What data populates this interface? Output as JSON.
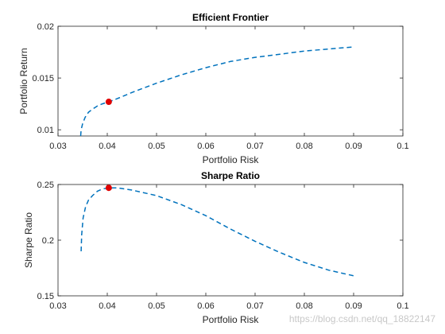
{
  "chart_data": [
    {
      "type": "line",
      "title": "Efficient Frontier",
      "xlabel": "Portfolio Risk",
      "ylabel": "Portfolio Return",
      "xlim": [
        0.03,
        0.1
      ],
      "ylim": [
        0.0094,
        0.02
      ],
      "xticks": [
        0.03,
        0.04,
        0.05,
        0.06,
        0.07,
        0.08,
        0.09,
        0.1
      ],
      "yticks": [
        0.01,
        0.015,
        0.02
      ],
      "xtick_labels": [
        "0.03",
        "0.04",
        "0.05",
        "0.06",
        "0.07",
        "0.08",
        "0.09",
        "0.1"
      ],
      "ytick_labels": [
        "0.01",
        "0.015",
        "0.02"
      ],
      "series": [
        {
          "style": "dashed",
          "color": "#0072BD",
          "x": [
            0.0346,
            0.0347,
            0.035,
            0.0355,
            0.0362,
            0.037,
            0.038,
            0.039,
            0.0403,
            0.042,
            0.045,
            0.05,
            0.055,
            0.06,
            0.065,
            0.07,
            0.075,
            0.08,
            0.085,
            0.09
          ],
          "y": [
            0.0094,
            0.01,
            0.0106,
            0.0112,
            0.0117,
            0.012,
            0.0123,
            0.0125,
            0.0127,
            0.013,
            0.0136,
            0.0145,
            0.0153,
            0.016,
            0.0166,
            0.017,
            0.0173,
            0.0176,
            0.0178,
            0.018
          ]
        }
      ],
      "marker": {
        "x": 0.0403,
        "y": 0.0127,
        "color": "#E00000"
      }
    },
    {
      "type": "line",
      "title": "Sharpe Ratio",
      "xlabel": "Portfolio Risk",
      "ylabel": "Sharpe Ratio",
      "xlim": [
        0.03,
        0.1
      ],
      "ylim": [
        0.15,
        0.25
      ],
      "xticks": [
        0.03,
        0.04,
        0.05,
        0.06,
        0.07,
        0.08,
        0.09,
        0.1
      ],
      "yticks": [
        0.15,
        0.2,
        0.25
      ],
      "xtick_labels": [
        "0.03",
        "0.04",
        "0.05",
        "0.06",
        "0.07",
        "0.08",
        "0.09",
        "0.1"
      ],
      "ytick_labels": [
        "0.15",
        "0.2",
        "0.25"
      ],
      "series": [
        {
          "style": "dashed",
          "color": "#0072BD",
          "x": [
            0.0347,
            0.0348,
            0.0351,
            0.0356,
            0.0362,
            0.037,
            0.038,
            0.039,
            0.0403,
            0.042,
            0.045,
            0.05,
            0.055,
            0.06,
            0.065,
            0.07,
            0.075,
            0.08,
            0.085,
            0.09
          ],
          "y": [
            0.19,
            0.205,
            0.22,
            0.23,
            0.236,
            0.24,
            0.244,
            0.246,
            0.247,
            0.247,
            0.245,
            0.24,
            0.232,
            0.222,
            0.21,
            0.199,
            0.189,
            0.18,
            0.173,
            0.168
          ]
        }
      ],
      "marker": {
        "x": 0.0403,
        "y": 0.247,
        "color": "#E00000"
      }
    }
  ],
  "watermark": "https://blog.csdn.net/qq_18822147"
}
